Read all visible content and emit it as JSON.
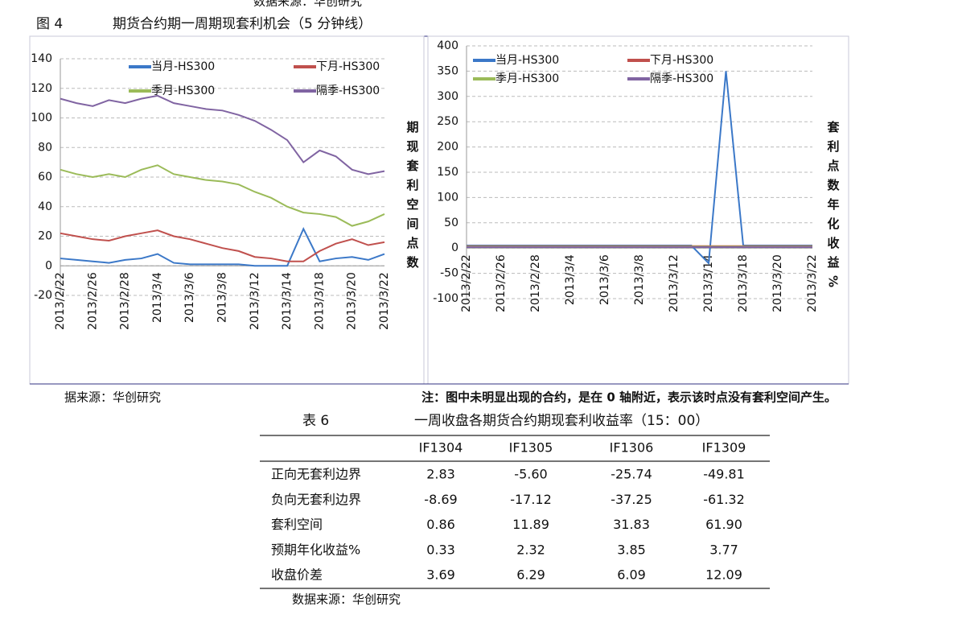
{
  "document": {
    "top_source": "数据来源：华创研究",
    "figure_number": "图 4",
    "figure_title": "期货合约期一周期现套利机会（5 分钟线）",
    "figure_source": "据来源：华创研究",
    "figure_note": "注：图中未明显出现的合约，是在 0 轴附近，表示该时点没有套利空间产生。",
    "table_number": "表 6",
    "table_title": "一周收盘各期货合约期现套利收益率（15：00）",
    "table": {
      "header": [
        "IF1304",
        "IF1305",
        "IF1306",
        "IF1309"
      ],
      "rows": [
        [
          "正向无套利边界",
          "2.83",
          "-5.60",
          "-25.74",
          "-49.81"
        ],
        [
          "负向无套利边界",
          "-8.69",
          "-17.12",
          "-37.25",
          "-61.32"
        ],
        [
          "套利空间",
          "0.86",
          "11.89",
          "31.83",
          "61.90"
        ],
        [
          "预期年化收益%",
          "0.33",
          "2.32",
          "3.85",
          "3.77"
        ],
        [
          "收盘价差",
          "3.69",
          "6.29",
          "6.09",
          "12.09"
        ]
      ]
    },
    "table_source": "数据来源：华创研究"
  },
  "chart_data": [
    {
      "type": "line",
      "y_label": "期现套利空间点数",
      "categories": [
        "2013/2/22",
        null,
        "2013/2/26",
        null,
        "2013/2/28",
        null,
        "2013/3/4",
        null,
        "2013/3/6",
        null,
        "2013/3/8",
        null,
        "2013/3/12",
        null,
        "2013/3/14",
        null,
        "2013/3/18",
        null,
        "2013/3/20",
        null,
        "2013/3/22"
      ],
      "ylim": [
        -20,
        140
      ],
      "yticks": [
        -20,
        0,
        20,
        40,
        60,
        80,
        100,
        120,
        140
      ],
      "grid": true,
      "legend": "top",
      "series": [
        {
          "name": "当月-HS300",
          "color": "#3b78c8",
          "values": [
            5,
            4,
            3,
            2,
            4,
            5,
            8,
            2,
            1,
            1,
            1,
            1,
            0,
            0,
            0,
            25,
            3,
            5,
            6,
            4,
            8
          ]
        },
        {
          "name": "下月-HS300",
          "color": "#c0504d",
          "values": [
            22,
            20,
            18,
            17,
            20,
            22,
            24,
            20,
            18,
            15,
            12,
            10,
            6,
            5,
            3,
            3,
            10,
            15,
            18,
            14,
            16
          ]
        },
        {
          "name": "季月-HS300",
          "color": "#9bbb59",
          "values": [
            65,
            62,
            60,
            62,
            60,
            65,
            68,
            62,
            60,
            58,
            57,
            55,
            50,
            46,
            40,
            36,
            35,
            33,
            27,
            30,
            35
          ]
        },
        {
          "name": "隔季-HS300",
          "color": "#8064a2",
          "values": [
            113,
            110,
            108,
            112,
            110,
            113,
            115,
            110,
            108,
            106,
            105,
            102,
            98,
            92,
            85,
            70,
            78,
            74,
            65,
            62,
            64
          ]
        }
      ]
    },
    {
      "type": "line",
      "y_label": "套利点数年化收益%",
      "categories": [
        "2013/2/22",
        null,
        "2013/2/26",
        null,
        "2013/2/28",
        null,
        "2013/3/4",
        null,
        "2013/3/6",
        null,
        "2013/3/8",
        null,
        "2013/3/12",
        null,
        "2013/3/14",
        null,
        "2013/3/18",
        null,
        "2013/3/20",
        null,
        "2013/3/22"
      ],
      "ylim": [
        -100,
        400
      ],
      "yticks": [
        -100,
        -50,
        0,
        50,
        100,
        150,
        200,
        250,
        300,
        350,
        400
      ],
      "grid": true,
      "legend": "top",
      "series": [
        {
          "name": "当月-HS300",
          "color": "#3b78c8",
          "values": [
            5,
            5,
            5,
            5,
            5,
            5,
            5,
            5,
            5,
            5,
            5,
            5,
            5,
            5,
            -30,
            350,
            5,
            5,
            5,
            5,
            5
          ]
        },
        {
          "name": "下月-HS300",
          "color": "#c0504d",
          "values": [
            4,
            4,
            4,
            4,
            4,
            4,
            4,
            4,
            4,
            4,
            4,
            4,
            4,
            4,
            4,
            4,
            4,
            4,
            4,
            4,
            4
          ]
        },
        {
          "name": "季月-HS300",
          "color": "#9bbb59",
          "values": [
            3,
            3,
            3,
            3,
            3,
            3,
            3,
            3,
            3,
            3,
            3,
            3,
            3,
            3,
            3,
            3,
            3,
            3,
            3,
            3,
            3
          ]
        },
        {
          "name": "隔季-HS300",
          "color": "#8064a2",
          "values": [
            2,
            2,
            2,
            2,
            2,
            2,
            2,
            2,
            2,
            2,
            2,
            2,
            2,
            2,
            2,
            2,
            2,
            2,
            2,
            2,
            2
          ]
        }
      ]
    }
  ]
}
